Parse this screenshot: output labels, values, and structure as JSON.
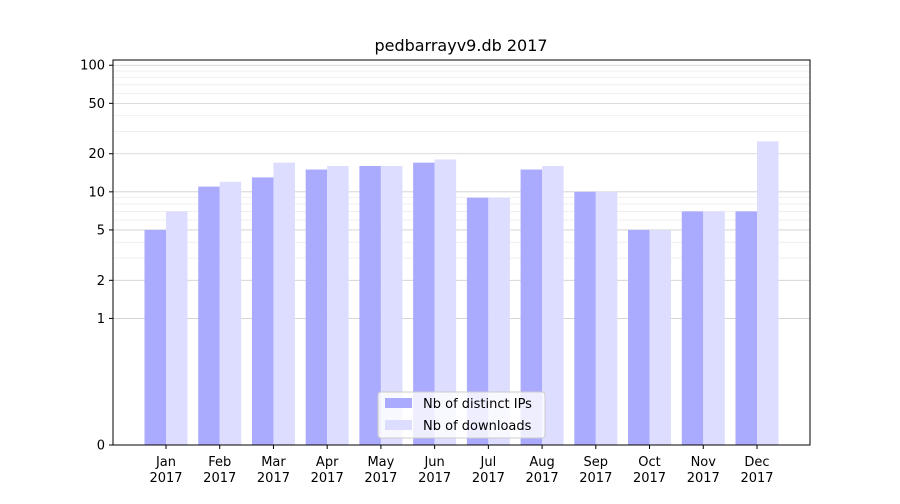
{
  "chart_data": {
    "type": "bar",
    "title": "pedbarrayv9.db 2017",
    "xlabel": "",
    "ylabel": "",
    "y_scale": "symlog",
    "ylim": [
      0,
      110
    ],
    "yticks": [
      0,
      1,
      2,
      5,
      10,
      20,
      50,
      100
    ],
    "categories": [
      [
        "Jan",
        "2017"
      ],
      [
        "Feb",
        "2017"
      ],
      [
        "Mar",
        "2017"
      ],
      [
        "Apr",
        "2017"
      ],
      [
        "May",
        "2017"
      ],
      [
        "Jun",
        "2017"
      ],
      [
        "Jul",
        "2017"
      ],
      [
        "Aug",
        "2017"
      ],
      [
        "Sep",
        "2017"
      ],
      [
        "Oct",
        "2017"
      ],
      [
        "Nov",
        "2017"
      ],
      [
        "Dec",
        "2017"
      ]
    ],
    "series": [
      {
        "name": "Nb of distinct IPs",
        "color": "#aaaaff",
        "values": [
          5,
          11,
          13,
          15,
          16,
          17,
          9,
          15,
          10,
          5,
          7,
          7
        ]
      },
      {
        "name": "Nb of downloads",
        "color": "#ddddff",
        "values": [
          7,
          12,
          17,
          16,
          16,
          18,
          9,
          16,
          10,
          5,
          7,
          25
        ]
      }
    ],
    "legend_position": "bottom-center",
    "grid": true
  }
}
